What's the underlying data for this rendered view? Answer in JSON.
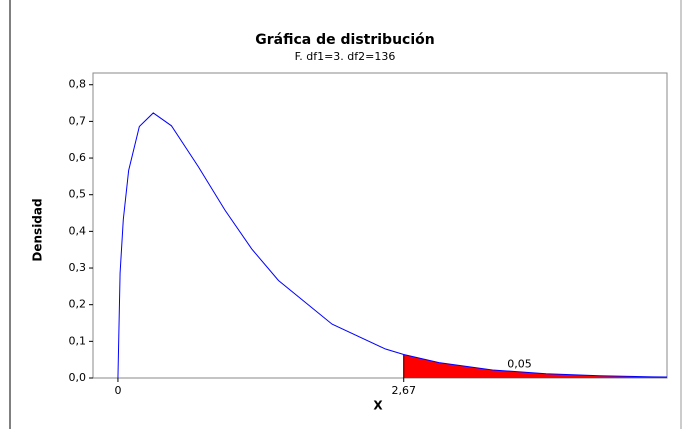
{
  "chart_data": {
    "type": "line",
    "title": "Gráfica de distribución",
    "subtitle": "F. df1=3. df2=136",
    "x_label": "X",
    "y_label": "Densidad",
    "x": [
      0,
      0.02,
      0.05,
      0.1,
      0.2,
      0.33,
      0.5,
      0.75,
      1,
      1.25,
      1.5,
      2,
      2.5,
      2.67,
      3,
      3.5,
      4,
      4.5,
      5,
      5.13
    ],
    "series": [
      {
        "name": "F",
        "color": "#0000ff",
        "values": [
          0,
          0.286,
          0.432,
          0.566,
          0.686,
          0.723,
          0.688,
          0.577,
          0.458,
          0.352,
          0.266,
          0.147,
          0.079,
          0.064,
          0.042,
          0.022,
          0.0117,
          0.0062,
          0.0032,
          0.0028
        ]
      }
    ],
    "shaded_area": {
      "x_from": 2.67,
      "value": 0.05,
      "label": "0,05",
      "color": "#ff0000"
    },
    "xlim": [
      -0.233,
      5.13
    ],
    "ylim": [
      0,
      0.832
    ],
    "xticks": [
      0,
      {
        "value": 2.67,
        "label": "2,67"
      }
    ],
    "yticks": [
      {
        "value": 0,
        "label": "0,0"
      },
      {
        "value": 0.1,
        "label": "0,1"
      },
      {
        "value": 0.2,
        "label": "0,2"
      },
      {
        "value": 0.3,
        "label": "0,3"
      },
      {
        "value": 0.4,
        "label": "0,4"
      },
      {
        "value": 0.5,
        "label": "0,5"
      },
      {
        "value": 0.6,
        "label": "0,6"
      },
      {
        "value": 0.7,
        "label": "0,7"
      },
      {
        "value": 0.8,
        "label": "0,8"
      }
    ],
    "grid": false
  }
}
